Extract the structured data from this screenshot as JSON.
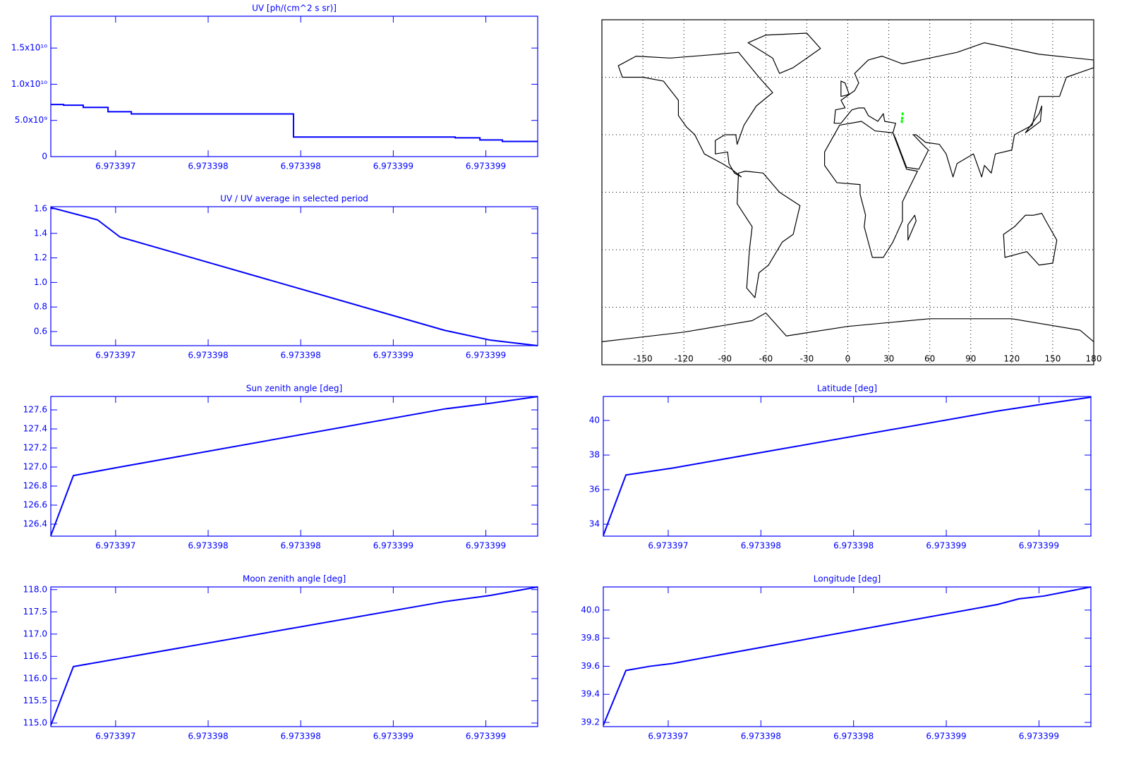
{
  "chart_data": [
    {
      "type": "line",
      "step": true,
      "title": "UV [ph/(cm^2 s sr)]",
      "color": "#0000ff",
      "x": [
        6.97339665,
        6.973396719,
        6.973396825,
        6.973396959,
        6.973397085,
        6.973397961,
        6.973398834,
        6.973398968,
        6.973399089,
        6.97339928
      ],
      "values": [
        7200000000,
        7100000000,
        6800000000,
        6200000000,
        5900000000,
        2700000000,
        2600000000,
        2300000000,
        2100000000,
        2100000000
      ],
      "xlim": [
        6.97339665,
        6.97339928
      ],
      "xticks": [
        {
          "value": 6.973397,
          "label": "6.973397"
        },
        {
          "value": 6.9733975,
          "label": "6.973398"
        },
        {
          "value": 6.973398,
          "label": "6.973398"
        },
        {
          "value": 6.9733985,
          "label": "6.973399"
        },
        {
          "value": 6.973399,
          "label": "6.973399"
        }
      ],
      "ylim": [
        0,
        19400000000
      ],
      "yticks": [
        0,
        {
          "value": 5000000000,
          "label": "5.0x10⁹"
        },
        {
          "value": 10000000000,
          "label": "1.0x10¹⁰"
        },
        {
          "value": 15000000000,
          "label": "1.5x10¹⁰"
        }
      ]
    },
    {
      "type": "map",
      "color": "#00ff00",
      "x": [
        39.57,
        39.8,
        40.1
      ],
      "values": [
        36.9,
        38.6,
        40.9
      ],
      "xlim": [
        -180,
        180
      ],
      "xticks": [
        -150,
        -120,
        -90,
        -60,
        -30,
        0,
        30,
        60,
        90,
        120,
        150,
        180
      ],
      "ylim": [
        -90,
        90
      ],
      "yticks": [
        -60,
        -30,
        0,
        30,
        60
      ],
      "ytick_labels": false,
      "grid": true
    },
    {
      "type": "line",
      "title": "UV / UV average in selected period",
      "color": "#0000ff",
      "x": [
        6.97339665,
        6.973396902,
        6.973397024,
        6.973398777,
        6.973399025,
        6.97339928
      ],
      "values": [
        1.61,
        1.51,
        1.37,
        0.61,
        0.53,
        0.485
      ],
      "xlim": [
        6.97339665,
        6.97339928
      ],
      "xticks": [
        {
          "value": 6.973397,
          "label": "6.973397"
        },
        {
          "value": 6.9733975,
          "label": "6.973398"
        },
        {
          "value": 6.973398,
          "label": "6.973398"
        },
        {
          "value": 6.9733985,
          "label": "6.973399"
        },
        {
          "value": 6.973399,
          "label": "6.973399"
        }
      ],
      "ylim": [
        0.485,
        1.617
      ],
      "yticks": [
        0.6,
        0.8,
        {
          "value": 1.0,
          "label": "1.0"
        },
        1.2,
        1.4,
        1.6
      ]
    },
    {
      "type": "line",
      "title": "Sun zenith angle [deg]",
      "color": "#0000ff",
      "x": [
        6.97339665,
        6.973396772,
        6.973397024,
        6.973398777,
        6.973399025,
        6.97339928
      ],
      "values": [
        126.28,
        126.91,
        127.0,
        127.61,
        127.67,
        127.74
      ],
      "xlim": [
        6.97339665,
        6.97339928
      ],
      "xticks": [
        {
          "value": 6.973397,
          "label": "6.973397"
        },
        {
          "value": 6.9733975,
          "label": "6.973398"
        },
        {
          "value": 6.973398,
          "label": "6.973398"
        },
        {
          "value": 6.9733985,
          "label": "6.973399"
        },
        {
          "value": 6.973399,
          "label": "6.973399"
        }
      ],
      "ylim": [
        126.274,
        127.741
      ],
      "yticks": [
        126.4,
        126.6,
        126.8,
        {
          "value": 127.0,
          "label": "127.0"
        },
        127.2,
        127.4,
        127.6
      ]
    },
    {
      "type": "line",
      "title": "Latitude [deg]",
      "color": "#0000ff",
      "x": [
        6.97339665,
        6.973396772,
        6.973397024,
        6.973398777,
        6.973399025,
        6.97339928
      ],
      "values": [
        33.35,
        36.85,
        37.25,
        40.55,
        40.95,
        41.35
      ],
      "xlim": [
        6.97339665,
        6.97339928
      ],
      "xticks": [
        {
          "value": 6.973397,
          "label": "6.973397"
        },
        {
          "value": 6.9733975,
          "label": "6.973398"
        },
        {
          "value": 6.973398,
          "label": "6.973398"
        },
        {
          "value": 6.9733985,
          "label": "6.973399"
        },
        {
          "value": 6.973399,
          "label": "6.973399"
        }
      ],
      "ylim": [
        33.31,
        41.39
      ],
      "yticks": [
        34,
        36,
        38,
        40
      ]
    },
    {
      "type": "line",
      "title": "Moon zenith angle [deg]",
      "color": "#0000ff",
      "x": [
        6.97339665,
        6.973396772,
        6.973398777,
        6.973399025,
        6.97339928
      ],
      "values": [
        114.95,
        116.27,
        117.73,
        117.87,
        118.06
      ],
      "xlim": [
        6.97339665,
        6.97339928
      ],
      "xticks": [
        {
          "value": 6.973397,
          "label": "6.973397"
        },
        {
          "value": 6.9733975,
          "label": "6.973398"
        },
        {
          "value": 6.973398,
          "label": "6.973398"
        },
        {
          "value": 6.9733985,
          "label": "6.973399"
        },
        {
          "value": 6.973399,
          "label": "6.973399"
        }
      ],
      "ylim": [
        114.92,
        118.06
      ],
      "yticks": [
        {
          "value": 115.0,
          "label": "115.0"
        },
        115.5,
        {
          "value": 116.0,
          "label": "116.0"
        },
        116.5,
        {
          "value": 117.0,
          "label": "117.0"
        },
        117.5,
        {
          "value": 118.0,
          "label": "118.0"
        }
      ]
    },
    {
      "type": "line",
      "title": "Longitude [deg]",
      "color": "#0000ff",
      "x": [
        6.97339665,
        6.973396772,
        6.973396902,
        6.973397024,
        6.973398777,
        6.973398891,
        6.973399025,
        6.97339928
      ],
      "values": [
        39.18,
        39.57,
        39.6,
        39.62,
        40.04,
        40.08,
        40.1,
        40.165
      ],
      "xlim": [
        6.97339665,
        6.97339928
      ],
      "xticks": [
        {
          "value": 6.973397,
          "label": "6.973397"
        },
        {
          "value": 6.9733975,
          "label": "6.973398"
        },
        {
          "value": 6.973398,
          "label": "6.973398"
        },
        {
          "value": 6.9733985,
          "label": "6.973399"
        },
        {
          "value": 6.973399,
          "label": "6.973399"
        }
      ],
      "ylim": [
        39.17,
        40.165
      ],
      "yticks": [
        39.2,
        39.4,
        39.6,
        39.8,
        {
          "value": 40.0,
          "label": "40.0"
        }
      ]
    }
  ]
}
